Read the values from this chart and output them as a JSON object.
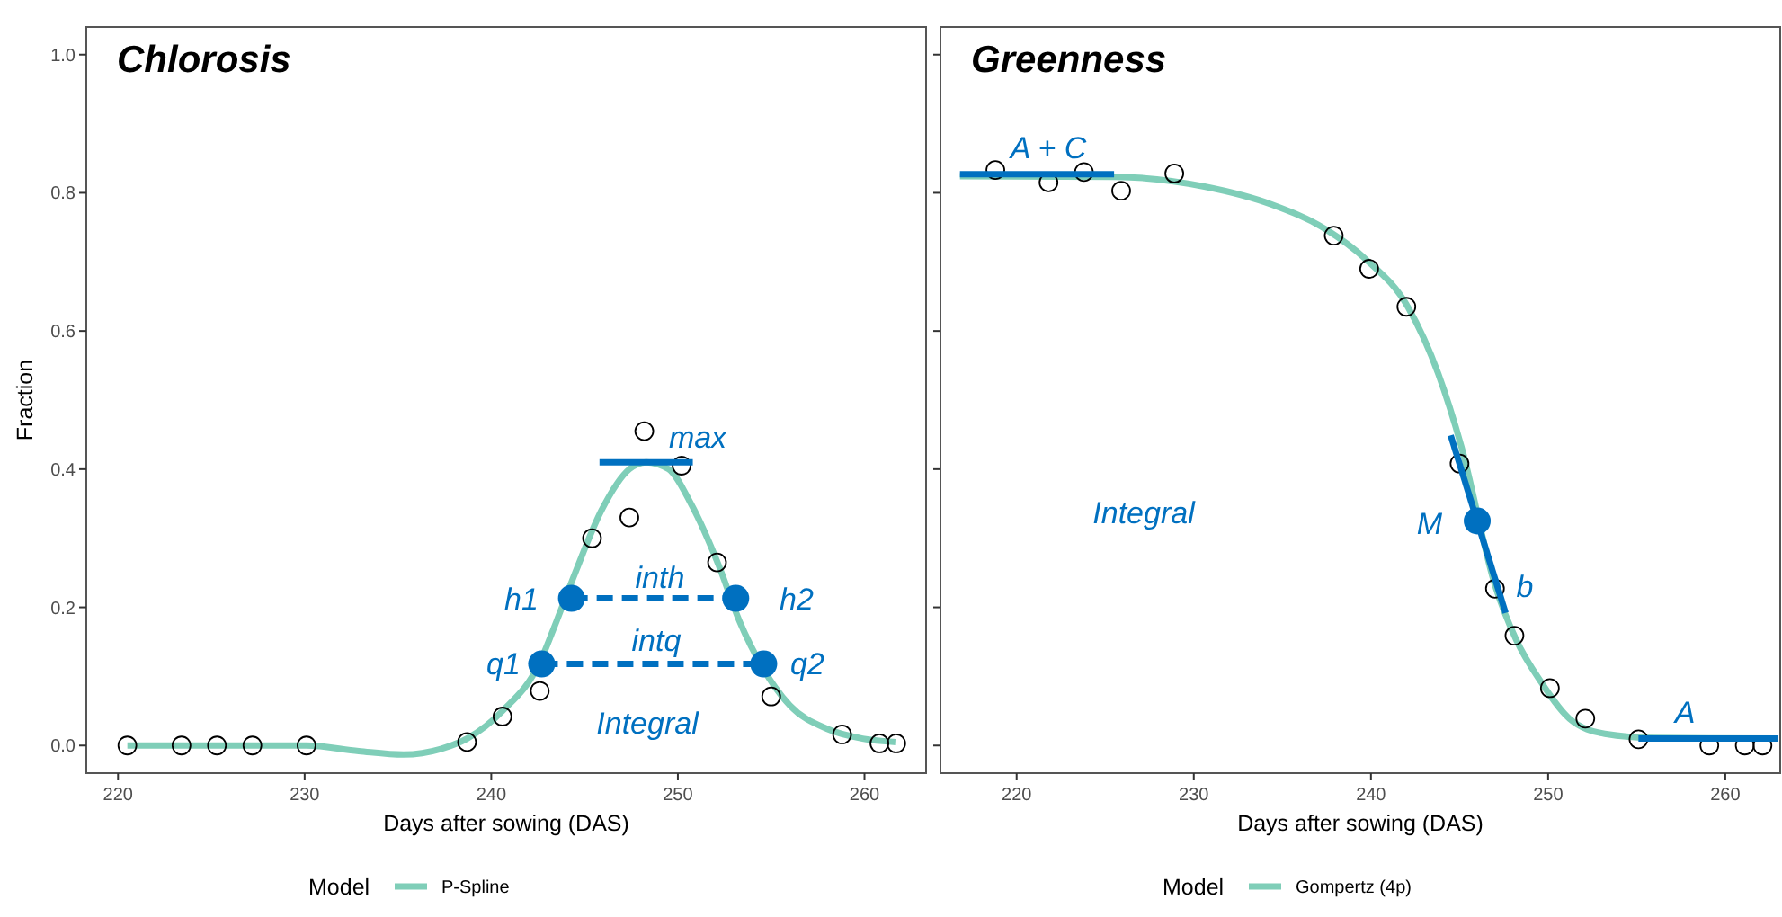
{
  "chart_data": [
    {
      "type": "line",
      "title": "Chlorosis",
      "xlabel": "Days after sowing (DAS)",
      "ylabel": "Fraction",
      "legend_title": "Model",
      "legend": "bottom",
      "grid": false,
      "xlim": [
        218.3,
        263.3
      ],
      "ylim": [
        -0.04,
        1.04
      ],
      "xticks": [
        220,
        230,
        240,
        250,
        260
      ],
      "yticks": [
        {
          "value": 0,
          "label": "0.0"
        },
        {
          "value": 0.2,
          "label": "0.2"
        },
        {
          "value": 0.4,
          "label": "0.4"
        },
        {
          "value": 0.6,
          "label": "0.6"
        },
        {
          "value": 0.8,
          "label": "0.8"
        },
        {
          "value": 1,
          "label": "1.0"
        }
      ],
      "series": [
        {
          "name": "P-Spline",
          "color": "#7fceb8",
          "line_style": "solid",
          "x": [
            220.5,
            225.2,
            230.1,
            232.9,
            235.3,
            237.3,
            238.7,
            240.6,
            242.6,
            243.5,
            244.5,
            245.9,
            247.4,
            248.3,
            249.5,
            250.7,
            252.2,
            253.3,
            254.6,
            256.0,
            258.0,
            259.9,
            261.7
          ],
          "values": [
            0,
            0,
            0,
            -0.008,
            -0.013,
            -0.005,
            0.01,
            0.05,
            0.12,
            0.18,
            0.25,
            0.34,
            0.4,
            0.41,
            0.4,
            0.35,
            0.26,
            0.18,
            0.11,
            0.058,
            0.024,
            0.01,
            0.005
          ]
        },
        {
          "type": "scatter",
          "marker": "circle",
          "color": "#000000",
          "x": [
            220.5,
            223.4,
            225.3,
            227.2,
            230.1,
            238.7,
            240.6,
            242.6,
            245.4,
            247.4,
            248.2,
            250.2,
            252.1,
            255.0,
            258.8,
            260.8,
            261.7
          ],
          "values": [
            0,
            0,
            0,
            0,
            0,
            0.005,
            0.042,
            0.079,
            0.3,
            0.33,
            0.455,
            0.405,
            0.265,
            0.071,
            0.016,
            0.003,
            0.003
          ]
        },
        {
          "type": "line",
          "color": "#0070c0",
          "line_style": "solid",
          "x": [
            245.8,
            250.8
          ],
          "values": [
            0.41,
            0.41
          ]
        },
        {
          "type": "line",
          "color": "#0070c0",
          "line_style": "dashed",
          "x": [
            244.3,
            253.1
          ],
          "values": [
            0.213,
            0.213
          ]
        },
        {
          "type": "line",
          "color": "#0070c0",
          "line_style": "dashed",
          "x": [
            242.7,
            254.6
          ],
          "values": [
            0.118,
            0.118
          ]
        },
        {
          "type": "scatter",
          "marker": "circle",
          "color": "#0070c0",
          "x": [
            244.3,
            253.1,
            242.7,
            254.6
          ],
          "values": [
            0.213,
            0.213,
            0.118,
            0.118
          ]
        }
      ],
      "annotations": [
        "max",
        "h1",
        "h2",
        "inth",
        "intq",
        "q1",
        "q2",
        "Integral"
      ]
    },
    {
      "type": "line",
      "title": "Greenness",
      "xlabel": "Days after sowing (DAS)",
      "legend_title": "Model",
      "legend": "bottom",
      "grid": false,
      "tick_labels": "x",
      "xlim": [
        215.7,
        263.1
      ],
      "ylim": [
        -0.04,
        1.04
      ],
      "xticks": [
        220,
        230,
        240,
        250,
        260
      ],
      "yticks": [
        0,
        0.2,
        0.4,
        0.6,
        0.8,
        1
      ],
      "series": [
        {
          "name": "Gompertz (4p)",
          "color": "#7fceb8",
          "line_style": "solid",
          "x": [
            216.8,
            225.6,
            230.6,
            234.4,
            237.4,
            239.7,
            242.1,
            243.8,
            245.1,
            247.0,
            248.2,
            249.6,
            251.2,
            253.2,
            256.0,
            263.0
          ],
          "values": [
            0.824,
            0.823,
            0.809,
            0.783,
            0.748,
            0.704,
            0.634,
            0.538,
            0.433,
            0.232,
            0.153,
            0.092,
            0.039,
            0.017,
            0.011,
            0.01
          ]
        },
        {
          "type": "scatter",
          "marker": "circle",
          "color": "#000000",
          "x": [
            218.8,
            221.8,
            223.8,
            225.9,
            228.9,
            237.9,
            239.9,
            242.0,
            245.0,
            247.0,
            248.1,
            250.1,
            252.1,
            255.1,
            259.1,
            261.1,
            262.1
          ],
          "values": [
            0.833,
            0.815,
            0.83,
            0.803,
            0.828,
            0.738,
            0.69,
            0.635,
            0.408,
            0.227,
            0.159,
            0.083,
            0.039,
            0.009,
            0,
            0,
            0
          ]
        },
        {
          "type": "line",
          "color": "#0070c0",
          "line_style": "solid",
          "x": [
            216.8,
            225.5
          ],
          "values": [
            0.827,
            0.827
          ]
        },
        {
          "type": "line",
          "color": "#0070c0",
          "line_style": "solid",
          "x": [
            255.1,
            263.0
          ],
          "values": [
            0.01,
            0.01
          ]
        },
        {
          "type": "line",
          "color": "#0070c0",
          "line_style": "solid",
          "x": [
            244.5,
            247.6
          ],
          "values": [
            0.449,
            0.192
          ]
        },
        {
          "type": "scatter",
          "marker": "circle",
          "color": "#0070c0",
          "x": [
            246.0
          ],
          "values": [
            0.325
          ]
        }
      ],
      "annotations": [
        "A + C",
        "A",
        "M",
        "b",
        "Integral"
      ]
    }
  ]
}
